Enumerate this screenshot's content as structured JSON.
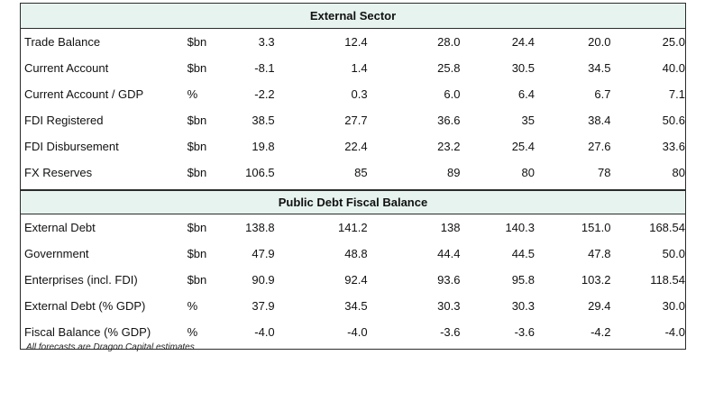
{
  "sections": [
    {
      "title": "External Sector",
      "rows": [
        {
          "label": "Trade Balance",
          "unit": "$bn",
          "values": [
            "3.3",
            "12.4",
            "28.0",
            "24.4",
            "20.0",
            "25.0"
          ]
        },
        {
          "label": "Current Account",
          "unit": "$bn",
          "values": [
            "-8.1",
            "1.4",
            "25.8",
            "30.5",
            "34.5",
            "40.0"
          ]
        },
        {
          "label": "Current Account / GDP",
          "unit": "%",
          "values": [
            "-2.2",
            "0.3",
            "6.0",
            "6.4",
            "6.7",
            "7.1"
          ]
        },
        {
          "label": "FDI Registered",
          "unit": "$bn",
          "values": [
            "38.5",
            "27.7",
            "36.6",
            "35",
            "38.4",
            "50.6"
          ]
        },
        {
          "label": "FDI Disbursement",
          "unit": "$bn",
          "values": [
            "19.8",
            "22.4",
            "23.2",
            "25.4",
            "27.6",
            "33.6"
          ]
        },
        {
          "label": "FX Reserves",
          "unit": "$bn",
          "values": [
            "106.5",
            "85",
            "89",
            "80",
            "78",
            "80"
          ]
        }
      ]
    },
    {
      "title": "Public Debt  Fiscal Balance",
      "rows": [
        {
          "label": "External Debt",
          "unit": "$bn",
          "values": [
            "138.8",
            "141.2",
            "138",
            "140.3",
            "151.0",
            "168.54"
          ]
        },
        {
          "label": "Government",
          "unit": "$bn",
          "values": [
            "47.9",
            "48.8",
            "44.4",
            "44.5",
            "47.8",
            "50.0"
          ]
        },
        {
          "label": "Enterprises (incl. FDI)",
          "unit": "$bn",
          "values": [
            "90.9",
            "92.4",
            "93.6",
            "95.8",
            "103.2",
            "118.54"
          ]
        },
        {
          "label": "External Debt (% GDP)",
          "unit": "%",
          "values": [
            "37.9",
            "34.5",
            "30.3",
            "30.3",
            "29.4",
            "30.0"
          ]
        },
        {
          "label": "Fiscal Balance (% GDP)",
          "unit": "%",
          "values": [
            "-4.0",
            "-4.0",
            "-3.6",
            "-3.6",
            "-4.2",
            "-4.0"
          ]
        }
      ]
    }
  ],
  "footnote": "All forecasts are Dragon Capital estimates"
}
